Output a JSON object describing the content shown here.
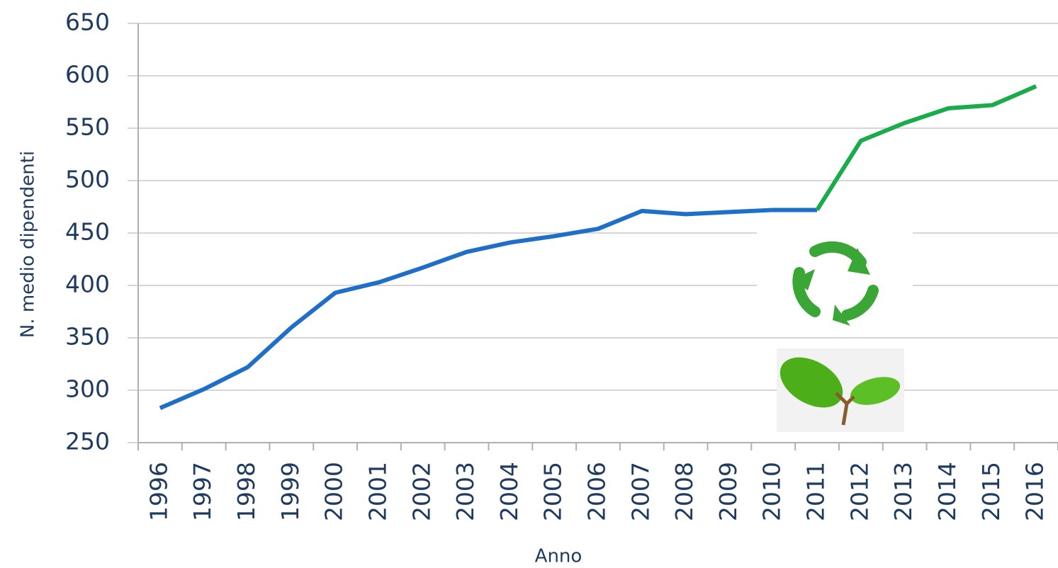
{
  "chart_data": {
    "type": "line",
    "x_label": "Anno",
    "y_label": "N. medio dipendenti",
    "categories": [
      "1996",
      "1997",
      "1998",
      "1999",
      "2000",
      "2001",
      "2002",
      "2003",
      "2004",
      "2005",
      "2006",
      "2007",
      "2008",
      "2009",
      "2010",
      "2011",
      "2012",
      "2013",
      "2014",
      "2015",
      "2016"
    ],
    "series": [
      {
        "color": "#1f6fc8",
        "values": [
          283,
          301,
          322,
          360,
          393,
          403,
          417,
          432,
          441,
          447,
          454,
          471,
          468,
          470,
          472,
          472,
          null,
          null,
          null,
          null,
          null
        ]
      },
      {
        "color": "#1aab4b",
        "values": [
          null,
          null,
          null,
          null,
          null,
          null,
          null,
          null,
          null,
          null,
          null,
          null,
          null,
          null,
          null,
          472,
          538,
          555,
          569,
          572,
          590
        ]
      }
    ],
    "ylim": [
      250,
      650
    ],
    "yticks": [
      250,
      300,
      350,
      400,
      450,
      500,
      550,
      600,
      650
    ],
    "grid": true
  }
}
